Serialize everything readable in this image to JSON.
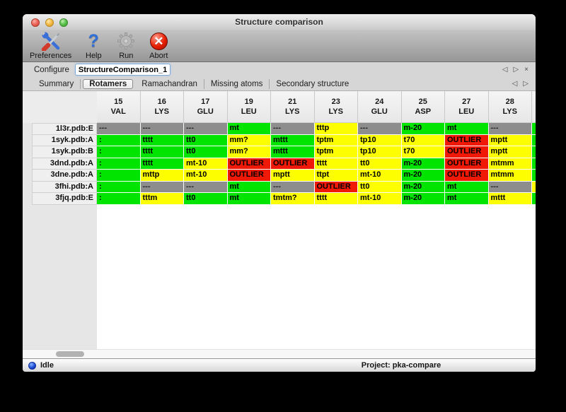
{
  "window": {
    "title": "Structure comparison"
  },
  "traffic_lights": {
    "close": "close-button",
    "minimize": "minimize-button",
    "zoom": "zoom-button"
  },
  "toolbar": {
    "items": [
      {
        "label": "Preferences",
        "icon": "tools-icon"
      },
      {
        "label": "Help",
        "icon": "question-mark-icon"
      },
      {
        "label": "Run",
        "icon": "gear-icon"
      },
      {
        "label": "Abort",
        "icon": "red-x-icon"
      }
    ]
  },
  "configure": {
    "label": "Configure",
    "value": "StructureComparison_1",
    "prev_glyph": "◁",
    "next_glyph": "▷",
    "close_glyph": "×"
  },
  "tabs": {
    "items": [
      "Summary",
      "Rotamers",
      "Ramachandran",
      "Missing atoms",
      "Secondary structure"
    ],
    "selected": "Rotamers",
    "prev_glyph": "◁",
    "next_glyph": "▷"
  },
  "colors": {
    "green": "#00e400",
    "yellow": "#fdff00",
    "red": "#f01806",
    "gray": "#8d8d8d"
  },
  "table": {
    "columns": [
      {
        "num": "15",
        "res": "VAL"
      },
      {
        "num": "16",
        "res": "LYS"
      },
      {
        "num": "17",
        "res": "GLU"
      },
      {
        "num": "19",
        "res": "LEU"
      },
      {
        "num": "21",
        "res": "LYS"
      },
      {
        "num": "23",
        "res": "LYS"
      },
      {
        "num": "24",
        "res": "GLU"
      },
      {
        "num": "25",
        "res": "ASP"
      },
      {
        "num": "27",
        "res": "LEU"
      },
      {
        "num": "28",
        "res": "LYS"
      }
    ],
    "rows": [
      {
        "label": "1l3r.pdb:E",
        "cells": [
          {
            "t": "---",
            "c": "gray"
          },
          {
            "t": "---",
            "c": "gray"
          },
          {
            "t": "---",
            "c": "gray"
          },
          {
            "t": "mt",
            "c": "green"
          },
          {
            "t": "---",
            "c": "gray"
          },
          {
            "t": "tttp",
            "c": "yellow"
          },
          {
            "t": "---",
            "c": "gray"
          },
          {
            "t": "m-20",
            "c": "green"
          },
          {
            "t": "mt",
            "c": "green"
          },
          {
            "t": "---",
            "c": "gray"
          }
        ],
        "extra": "green"
      },
      {
        "label": "1syk.pdb:A",
        "cells": [
          {
            "t": ":",
            "c": "green"
          },
          {
            "t": "tttt",
            "c": "green"
          },
          {
            "t": "tt0",
            "c": "green"
          },
          {
            "t": "mm?",
            "c": "yellow"
          },
          {
            "t": "mttt",
            "c": "green"
          },
          {
            "t": "tptm",
            "c": "yellow"
          },
          {
            "t": "tp10",
            "c": "yellow"
          },
          {
            "t": "t70",
            "c": "yellow"
          },
          {
            "t": "OUTLIER",
            "c": "red"
          },
          {
            "t": "mptt",
            "c": "yellow"
          }
        ],
        "extra": "green"
      },
      {
        "label": "1syk.pdb:B",
        "cells": [
          {
            "t": ":",
            "c": "green"
          },
          {
            "t": "tttt",
            "c": "green"
          },
          {
            "t": "tt0",
            "c": "green"
          },
          {
            "t": "mm?",
            "c": "yellow"
          },
          {
            "t": "mttt",
            "c": "green"
          },
          {
            "t": "tptm",
            "c": "yellow"
          },
          {
            "t": "tp10",
            "c": "yellow"
          },
          {
            "t": "t70",
            "c": "yellow"
          },
          {
            "t": "OUTLIER",
            "c": "red"
          },
          {
            "t": "mptt",
            "c": "yellow"
          }
        ],
        "extra": "green"
      },
      {
        "label": "3dnd.pdb:A",
        "cells": [
          {
            "t": ":",
            "c": "green"
          },
          {
            "t": "tttt",
            "c": "green"
          },
          {
            "t": "mt-10",
            "c": "yellow"
          },
          {
            "t": "OUTLIER",
            "c": "red"
          },
          {
            "t": "OUTLIER",
            "c": "red"
          },
          {
            "t": "tttt",
            "c": "yellow"
          },
          {
            "t": "tt0",
            "c": "yellow"
          },
          {
            "t": "m-20",
            "c": "green"
          },
          {
            "t": "OUTLIER",
            "c": "red"
          },
          {
            "t": "mtmm",
            "c": "yellow"
          }
        ],
        "extra": "green"
      },
      {
        "label": "3dne.pdb:A",
        "cells": [
          {
            "t": ":",
            "c": "green"
          },
          {
            "t": "mttp",
            "c": "yellow"
          },
          {
            "t": "mt-10",
            "c": "yellow"
          },
          {
            "t": "OUTLIER",
            "c": "red"
          },
          {
            "t": "mptt",
            "c": "yellow"
          },
          {
            "t": "ttpt",
            "c": "yellow"
          },
          {
            "t": "mt-10",
            "c": "yellow"
          },
          {
            "t": "m-20",
            "c": "green"
          },
          {
            "t": "OUTLIER",
            "c": "red"
          },
          {
            "t": "mtmm",
            "c": "yellow"
          }
        ],
        "extra": "green"
      },
      {
        "label": "3fhi.pdb:A",
        "cells": [
          {
            "t": ":",
            "c": "green"
          },
          {
            "t": "---",
            "c": "gray"
          },
          {
            "t": "---",
            "c": "gray"
          },
          {
            "t": "mt",
            "c": "green"
          },
          {
            "t": "---",
            "c": "gray"
          },
          {
            "t": "OUTLIER",
            "c": "red"
          },
          {
            "t": "tt0",
            "c": "yellow"
          },
          {
            "t": "m-20",
            "c": "green"
          },
          {
            "t": "mt",
            "c": "green"
          },
          {
            "t": "---",
            "c": "gray"
          }
        ],
        "extra": "yellow"
      },
      {
        "label": "3fjq.pdb:E",
        "cells": [
          {
            "t": ":",
            "c": "green"
          },
          {
            "t": "tttm",
            "c": "yellow"
          },
          {
            "t": "tt0",
            "c": "green"
          },
          {
            "t": "mt",
            "c": "green"
          },
          {
            "t": "tmtm?",
            "c": "yellow"
          },
          {
            "t": "tttt",
            "c": "yellow"
          },
          {
            "t": "mt-10",
            "c": "yellow"
          },
          {
            "t": "m-20",
            "c": "green"
          },
          {
            "t": "mt",
            "c": "green"
          },
          {
            "t": "mttt",
            "c": "yellow"
          }
        ],
        "extra": "green"
      }
    ]
  },
  "statusbar": {
    "status": "Idle",
    "project": "Project: pka-compare"
  }
}
